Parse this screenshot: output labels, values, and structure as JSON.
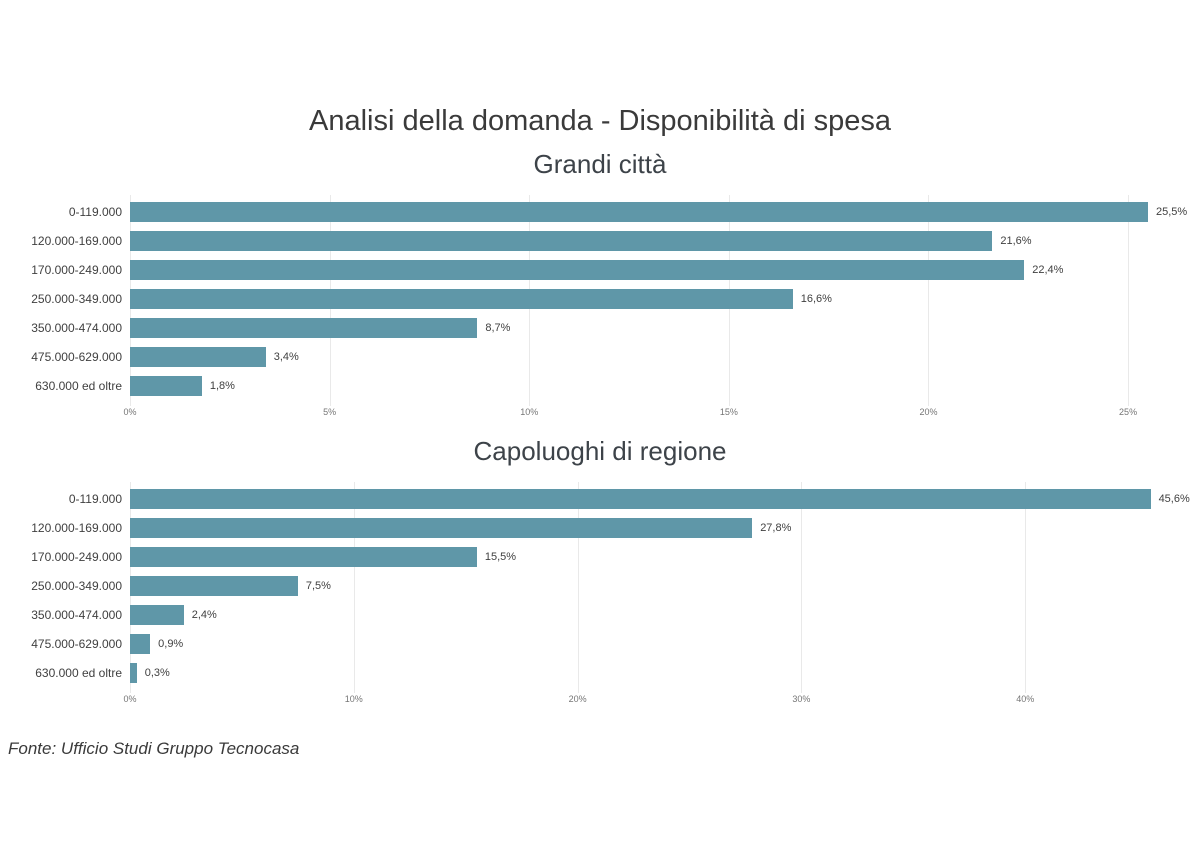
{
  "page": {
    "main_title": "Analisi della domanda - Disponibilità di spesa",
    "source_note": "Fonte: Ufficio Studi Gruppo Tecnocasa"
  },
  "colors": {
    "bar": "#5F97A8",
    "title_text": "#3A3A3A",
    "label_text": "#404040",
    "axis_text": "#757575",
    "gridline": "#E9E9E9",
    "background": "#FFFFFF"
  },
  "chart_data": [
    {
      "type": "bar",
      "orientation": "horizontal",
      "title": "Grandi città",
      "categories": [
        "0-119.000",
        "120.000-169.000",
        "170.000-249.000",
        "250.000-349.000",
        "350.000-474.000",
        "475.000-629.000",
        "630.000 ed oltre"
      ],
      "values": [
        25.5,
        21.6,
        22.4,
        16.6,
        8.7,
        3.4,
        1.8
      ],
      "value_labels": [
        "25,5%",
        "21,6%",
        "22,4%",
        "16,6%",
        "8,7%",
        "3,4%",
        "1,8%"
      ],
      "x_ticks": [
        "0%",
        "5%",
        "10%",
        "15%",
        "20%",
        "25%"
      ],
      "x_tick_values": [
        0,
        5,
        10,
        15,
        20,
        25
      ],
      "xlim": [
        0,
        25.9
      ],
      "xlabel": "",
      "ylabel": "",
      "grid": true,
      "legend": "none"
    },
    {
      "type": "bar",
      "orientation": "horizontal",
      "title": "Capoluoghi di regione",
      "categories": [
        "0-119.000",
        "120.000-169.000",
        "170.000-249.000",
        "250.000-349.000",
        "350.000-474.000",
        "475.000-629.000",
        "630.000 ed oltre"
      ],
      "values": [
        45.6,
        27.8,
        15.5,
        7.5,
        2.4,
        0.9,
        0.3
      ],
      "value_labels": [
        "45,6%",
        "27,8%",
        "15,5%",
        "7,5%",
        "2,4%",
        "0,9%",
        "0,3%"
      ],
      "x_ticks": [
        "0%",
        "10%",
        "20%",
        "30%",
        "40%"
      ],
      "x_tick_values": [
        0,
        10,
        20,
        30,
        40
      ],
      "xlim": [
        0,
        46.2
      ],
      "xlabel": "",
      "ylabel": "",
      "grid": true,
      "legend": "none"
    }
  ]
}
